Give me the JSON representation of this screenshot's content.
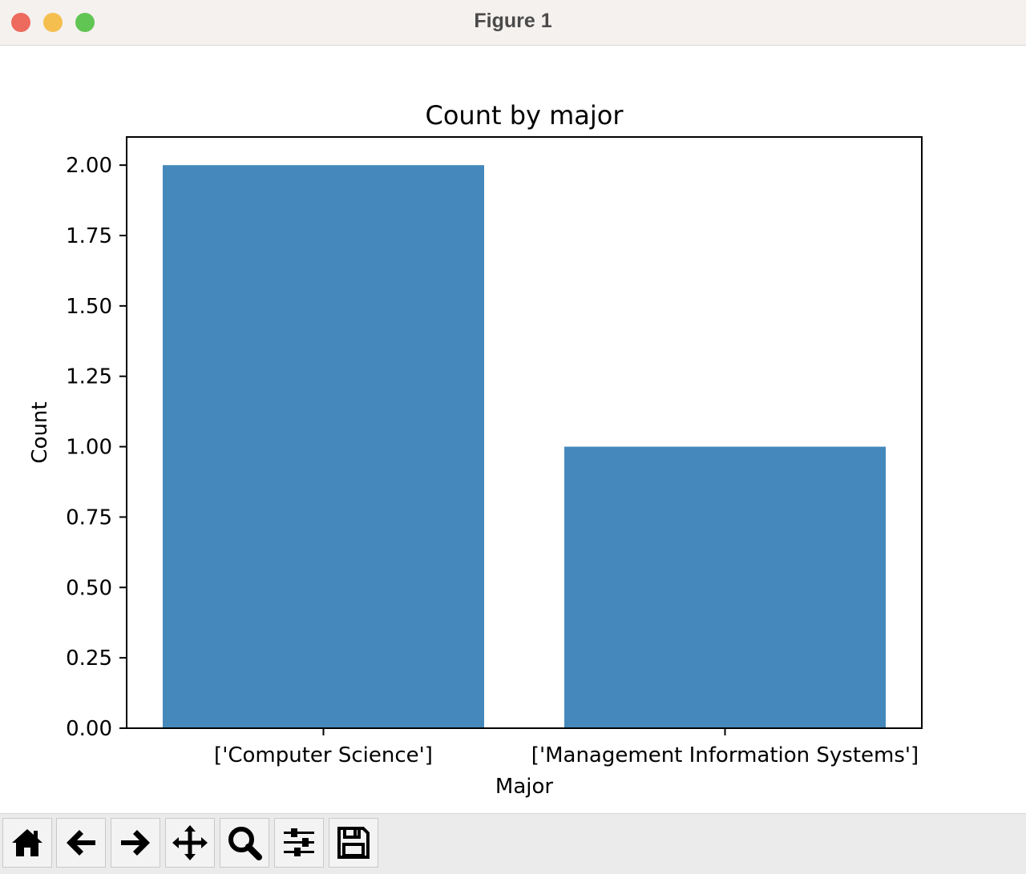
{
  "window": {
    "title": "Figure 1",
    "controls": [
      {
        "name": "close",
        "color": "#ed6a5e"
      },
      {
        "name": "minimize",
        "color": "#f5bf4f"
      },
      {
        "name": "maximize",
        "color": "#61c554"
      }
    ]
  },
  "chart_data": {
    "type": "bar",
    "title": "Count by major",
    "xlabel": "Major",
    "ylabel": "Count",
    "categories": [
      "['Computer Science']",
      "['Management Information Systems']"
    ],
    "values": [
      2,
      1
    ],
    "ylim": [
      0,
      2.1
    ],
    "yticks": [
      0,
      0.25,
      0.5,
      0.75,
      1.0,
      1.25,
      1.5,
      1.75,
      2.0
    ],
    "ytick_labels": [
      "0.00",
      "0.25",
      "0.50",
      "0.75",
      "1.00",
      "1.25",
      "1.50",
      "1.75",
      "2.00"
    ],
    "bar_color": "#4589bc",
    "grid": false
  },
  "toolbar": {
    "buttons": [
      {
        "name": "home-icon"
      },
      {
        "name": "back-arrow-icon"
      },
      {
        "name": "forward-arrow-icon"
      },
      {
        "name": "pan-icon"
      },
      {
        "name": "zoom-icon"
      },
      {
        "name": "configure-subplots-icon"
      },
      {
        "name": "save-icon"
      }
    ]
  }
}
